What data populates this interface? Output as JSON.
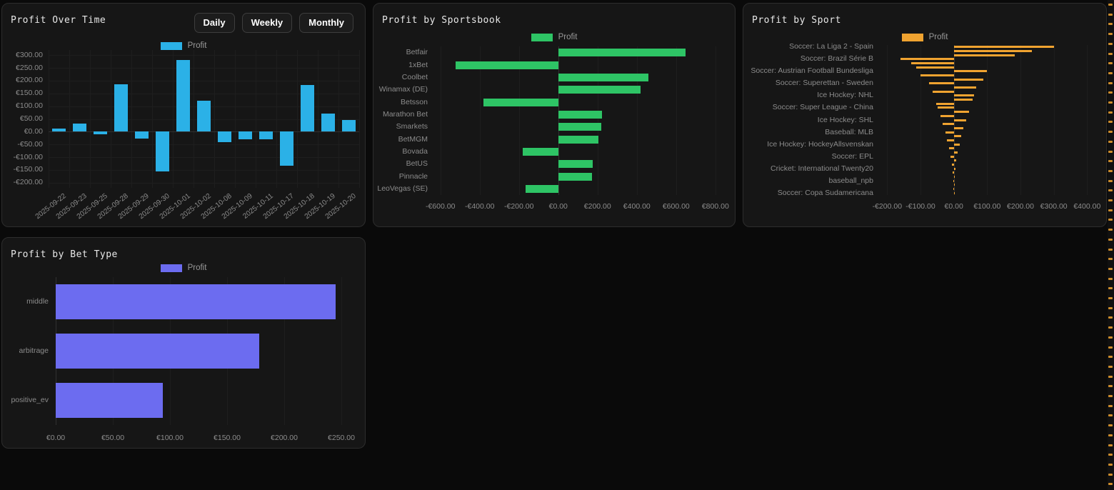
{
  "app": {
    "background": "#0a0a0a",
    "scrollbar": {
      "marker_color": "#f0a330",
      "marker_count": 50
    }
  },
  "chart_data": [
    {
      "type": "bar",
      "orientation": "vertical",
      "title": "Profit Over Time",
      "buttons": [
        "Daily",
        "Weekly",
        "Monthly"
      ],
      "legend": "Profit",
      "color": "#2bb1e7",
      "currency": "EUR",
      "categories": [
        "2025-09-22",
        "2025-09-23",
        "2025-09-25",
        "2025-09-28",
        "2025-09-29",
        "2025-09-30",
        "2025-10-01",
        "2025-10-02",
        "2025-10-08",
        "2025-10-09",
        "2025-10-11",
        "2025-10-17",
        "2025-10-18",
        "2025-10-19",
        "2025-10-20"
      ],
      "values": [
        11,
        32,
        -11,
        187,
        -28,
        -155,
        282,
        121,
        -40,
        -31,
        -31,
        -133,
        184,
        72,
        46
      ],
      "y_ticks": [
        "€300.00",
        "€250.00",
        "€200.00",
        "€150.00",
        "€100.00",
        "€50.00",
        "€0.00",
        "-€50.00",
        "-€100.00",
        "-€150.00",
        "-€200.00"
      ],
      "y_tick_values": [
        300,
        250,
        200,
        150,
        100,
        50,
        0,
        -50,
        -100,
        -150,
        -200
      ],
      "ylim": [
        -220,
        320
      ],
      "grid": true,
      "legend_position": "top-center"
    },
    {
      "type": "bar",
      "orientation": "horizontal",
      "title": "Profit by Sportsbook",
      "legend": "Profit",
      "color": "#2ec465",
      "currency": "EUR",
      "categories": [
        "Betfair",
        "1xBet",
        "Coolbet",
        "Winamax (DE)",
        "Betsson",
        "Marathon Bet",
        "Smarkets",
        "BetMGM",
        "Bovada",
        "BetUS",
        "Pinnacle",
        "LeoVegas (SE)"
      ],
      "values": [
        647,
        -524,
        458,
        418,
        -382,
        222,
        218,
        204,
        -182,
        175,
        171,
        -167
      ],
      "x_ticks": [
        "-€600.00",
        "-€400.00",
        "-€200.00",
        "€0.00",
        "€200.00",
        "€400.00",
        "€600.00",
        "€800.00"
      ],
      "x_tick_values": [
        -600,
        -400,
        -200,
        0,
        200,
        400,
        600,
        800
      ],
      "xlim": [
        -628,
        877
      ],
      "grid": true,
      "legend_position": "top-center"
    },
    {
      "type": "bar",
      "orientation": "horizontal",
      "title": "Profit by Sport",
      "legend": "Profit",
      "color": "#f0a330",
      "currency": "EUR",
      "categories": [
        "Soccer: La Liga 2 - Spain",
        "Soccer: Brazil Série B",
        "Soccer: Austrian Football Bundesliga",
        "Soccer: Superettan - Sweden",
        "Ice Hockey: NHL",
        "Soccer: Super League - China",
        "Ice Hockey: SHL",
        "Baseball: MLB",
        "Ice Hockey: HockeyAllsvenskan",
        "Soccer: EPL",
        "Cricket: International Twenty20",
        "baseball_npb",
        "Soccer: Copa Sudamericana"
      ],
      "label_every": 3,
      "values": [
        300,
        235,
        182,
        -160,
        -127,
        -113,
        100,
        -99,
        89,
        -74,
        68,
        -63,
        61,
        56,
        -52,
        -48,
        45,
        -41,
        38,
        -33,
        29,
        -26,
        23,
        -20,
        17,
        -14,
        11,
        -9,
        7,
        -5,
        4,
        -3,
        2,
        -1.5,
        1,
        -0.5,
        0.3
      ],
      "x_ticks": [
        "-€200.00",
        "-€100.00",
        "€0.00",
        "€100.00",
        "€200.00",
        "€300.00",
        "€400.00"
      ],
      "x_tick_values": [
        -200,
        -100,
        0,
        100,
        200,
        300,
        400
      ],
      "xlim": [
        -220,
        440
      ],
      "grid": true,
      "legend_position": "top-center"
    },
    {
      "type": "bar",
      "orientation": "horizontal",
      "title": "Profit by Bet Type",
      "legend": "Profit",
      "color": "#6c6cf0",
      "currency": "EUR",
      "categories": [
        "middle",
        "arbitrage",
        "positive_ev"
      ],
      "values": [
        245,
        178,
        94
      ],
      "x_ticks": [
        "€0.00",
        "€50.00",
        "€100.00",
        "€150.00",
        "€200.00",
        "€250.00"
      ],
      "x_tick_values": [
        0,
        50,
        100,
        150,
        200,
        250
      ],
      "xlim": [
        0,
        265
      ],
      "grid": true,
      "legend_position": "top-center"
    }
  ]
}
